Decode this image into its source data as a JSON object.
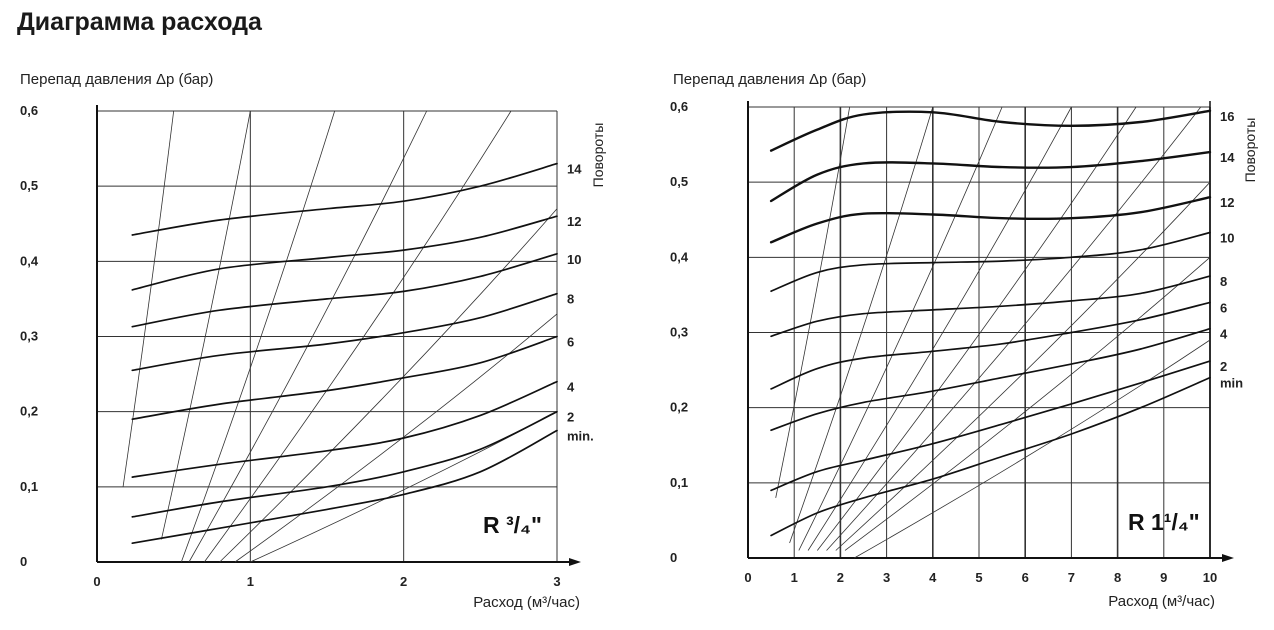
{
  "title": "Диаграмма расхода",
  "chart_data": [
    {
      "type": "line",
      "ylabel": "Перепад давления  Δp (бар)",
      "xlabel": "Расход (м³/час)",
      "badge": "R ³/₄\"",
      "side_label": "Повороты",
      "xlim": [
        0,
        3
      ],
      "ylim": [
        0,
        0.6
      ],
      "x_ticks": [
        "0",
        "1",
        "2",
        "3"
      ],
      "y_ticks": [
        "0",
        "0,1",
        "0,2",
        "0,3",
        "0,4",
        "0,5",
        "0,6"
      ],
      "series": [
        {
          "name": "14",
          "x": [
            0.23,
            0.8,
            1.5,
            2.0,
            2.5,
            3.0
          ],
          "y": [
            0.435,
            0.455,
            0.47,
            0.48,
            0.5,
            0.53
          ]
        },
        {
          "name": "12",
          "x": [
            0.23,
            0.8,
            1.5,
            2.0,
            2.5,
            3.0
          ],
          "y": [
            0.362,
            0.39,
            0.405,
            0.415,
            0.432,
            0.46
          ]
        },
        {
          "name": "10",
          "x": [
            0.23,
            0.8,
            1.5,
            2.0,
            2.5,
            3.0
          ],
          "y": [
            0.313,
            0.335,
            0.35,
            0.36,
            0.38,
            0.41
          ]
        },
        {
          "name": "8",
          "x": [
            0.23,
            0.8,
            1.5,
            2.0,
            2.5,
            3.0
          ],
          "y": [
            0.255,
            0.275,
            0.29,
            0.305,
            0.325,
            0.357
          ]
        },
        {
          "name": "6",
          "x": [
            0.23,
            0.8,
            1.5,
            2.0,
            2.5,
            3.0
          ],
          "y": [
            0.19,
            0.21,
            0.228,
            0.245,
            0.265,
            0.3
          ]
        },
        {
          "name": "4",
          "x": [
            0.23,
            0.8,
            1.5,
            2.0,
            2.5,
            3.0
          ],
          "y": [
            0.113,
            0.13,
            0.148,
            0.165,
            0.195,
            0.24
          ]
        },
        {
          "name": "2",
          "x": [
            0.23,
            0.8,
            1.5,
            2.0,
            2.5,
            3.0
          ],
          "y": [
            0.06,
            0.08,
            0.1,
            0.12,
            0.15,
            0.2
          ]
        },
        {
          "name": "min.",
          "x": [
            0.23,
            0.8,
            1.5,
            2.0,
            2.5,
            3.0
          ],
          "y": [
            0.025,
            0.045,
            0.07,
            0.09,
            0.12,
            0.175
          ]
        }
      ]
    },
    {
      "type": "line",
      "ylabel": "Перепад давления  Δp (бар)",
      "xlabel": "Расход (м³/час)",
      "badge": "R 1¹/₄\"",
      "side_label": "Повороты",
      "xlim": [
        0,
        10
      ],
      "ylim": [
        0,
        0.6
      ],
      "x_ticks": [
        "0",
        "1",
        "2",
        "3",
        "4",
        "5",
        "6",
        "7",
        "8",
        "9",
        "10"
      ],
      "y_ticks": [
        "0",
        "0,1",
        "0,2",
        "0,3",
        "0,4",
        "0,5",
        "0,6"
      ],
      "series": [
        {
          "name": "16",
          "x": [
            0.5,
            1.5,
            2.5,
            4.0,
            5.5,
            7.0,
            8.5,
            10.0
          ],
          "y": [
            0.542,
            0.57,
            0.59,
            0.593,
            0.58,
            0.575,
            0.58,
            0.595
          ]
        },
        {
          "name": "14",
          "x": [
            0.5,
            1.5,
            2.5,
            4.0,
            5.5,
            7.0,
            8.5,
            10.0
          ],
          "y": [
            0.475,
            0.51,
            0.525,
            0.525,
            0.52,
            0.52,
            0.528,
            0.54
          ]
        },
        {
          "name": "12",
          "x": [
            0.5,
            1.5,
            2.5,
            4.0,
            5.5,
            7.0,
            8.5,
            10.0
          ],
          "y": [
            0.42,
            0.445,
            0.458,
            0.457,
            0.452,
            0.452,
            0.46,
            0.48
          ]
        },
        {
          "name": "10",
          "x": [
            0.5,
            1.5,
            2.5,
            4.0,
            5.5,
            7.0,
            8.5,
            10.0
          ],
          "y": [
            0.355,
            0.38,
            0.39,
            0.393,
            0.395,
            0.4,
            0.41,
            0.433
          ]
        },
        {
          "name": "8",
          "x": [
            0.5,
            1.5,
            2.5,
            4.0,
            5.5,
            7.0,
            8.5,
            10.0
          ],
          "y": [
            0.295,
            0.315,
            0.325,
            0.33,
            0.335,
            0.342,
            0.352,
            0.375
          ]
        },
        {
          "name": "6",
          "x": [
            0.5,
            1.5,
            2.5,
            4.0,
            5.5,
            7.0,
            8.5,
            10.0
          ],
          "y": [
            0.225,
            0.252,
            0.266,
            0.275,
            0.285,
            0.3,
            0.317,
            0.34
          ]
        },
        {
          "name": "4",
          "x": [
            0.5,
            1.5,
            2.5,
            4.0,
            5.5,
            7.0,
            8.5,
            10.0
          ],
          "y": [
            0.17,
            0.192,
            0.207,
            0.222,
            0.24,
            0.258,
            0.278,
            0.305
          ]
        },
        {
          "name": "2",
          "x": [
            0.5,
            1.5,
            2.5,
            4.0,
            5.5,
            7.0,
            8.5,
            10.0
          ],
          "y": [
            0.09,
            0.115,
            0.13,
            0.152,
            0.178,
            0.205,
            0.233,
            0.262
          ]
        },
        {
          "name": "min",
          "x": [
            0.5,
            1.5,
            2.5,
            4.0,
            5.5,
            7.0,
            8.5,
            10.0
          ],
          "y": [
            0.03,
            0.06,
            0.08,
            0.105,
            0.135,
            0.165,
            0.2,
            0.24
          ]
        }
      ]
    }
  ]
}
